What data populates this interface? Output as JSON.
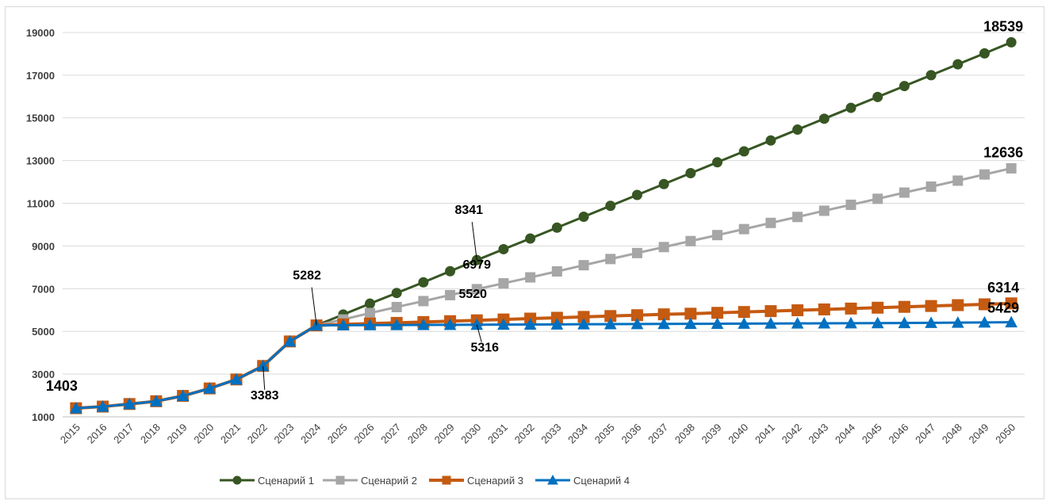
{
  "chart_data": {
    "type": "line",
    "title": "",
    "xlabel": "",
    "ylabel": "",
    "ylim": [
      1000,
      20000
    ],
    "yticks": [
      1000,
      3000,
      5000,
      7000,
      9000,
      11000,
      13000,
      15000,
      17000,
      19000
    ],
    "grid": true,
    "legend_position": "bottom",
    "x": [
      "2015",
      "2016",
      "2017",
      "2018",
      "2019",
      "2020",
      "2021",
      "2022",
      "2023",
      "2024",
      "2025",
      "2026",
      "2027",
      "2028",
      "2029",
      "2030",
      "2031",
      "2032",
      "2033",
      "2034",
      "2035",
      "2036",
      "2037",
      "2038",
      "2039",
      "2040",
      "2041",
      "2042",
      "2043",
      "2044",
      "2045",
      "2046",
      "2047",
      "2048",
      "2049",
      "2050"
    ],
    "series": [
      {
        "name": "Сценарий 1",
        "color": "#375623",
        "marker": "circle",
        "values": [
          1403,
          1480,
          1600,
          1730,
          1980,
          2330,
          2750,
          3383,
          4530,
          5282,
          5790,
          6300,
          6800,
          7300,
          7820,
          8341,
          8850,
          9350,
          9860,
          10370,
          10880,
          11390,
          11900,
          12410,
          12920,
          13430,
          13940,
          14450,
          14960,
          15470,
          15980,
          16490,
          17000,
          17510,
          18020,
          18539
        ]
      },
      {
        "name": "Сценарий 2",
        "color": "#a6a6a6",
        "marker": "square",
        "values": [
          1403,
          1480,
          1600,
          1730,
          1980,
          2330,
          2750,
          3383,
          4530,
          5282,
          5560,
          5860,
          6140,
          6420,
          6700,
          6979,
          7250,
          7530,
          7810,
          8100,
          8390,
          8670,
          8950,
          9230,
          9510,
          9790,
          10080,
          10360,
          10650,
          10930,
          11210,
          11500,
          11780,
          12060,
          12350,
          12636
        ]
      },
      {
        "name": "Сценарий 3",
        "color": "#c55a11",
        "marker": "square",
        "values": [
          1403,
          1480,
          1600,
          1730,
          1980,
          2330,
          2750,
          3383,
          4530,
          5282,
          5330,
          5370,
          5400,
          5440,
          5480,
          5520,
          5560,
          5600,
          5640,
          5680,
          5720,
          5760,
          5800,
          5830,
          5870,
          5910,
          5950,
          5990,
          6030,
          6070,
          6110,
          6150,
          6190,
          6230,
          6270,
          6314
        ]
      },
      {
        "name": "Сценарий 4",
        "color": "#0070c0",
        "marker": "triangle",
        "values": [
          1403,
          1480,
          1600,
          1730,
          1980,
          2330,
          2750,
          3383,
          4530,
          5282,
          5290,
          5295,
          5300,
          5305,
          5310,
          5316,
          5320,
          5325,
          5330,
          5335,
          5340,
          5345,
          5350,
          5355,
          5360,
          5365,
          5370,
          5375,
          5380,
          5385,
          5390,
          5395,
          5400,
          5410,
          5420,
          5429
        ]
      }
    ],
    "annotations": [
      {
        "text": "1403",
        "x": "2015",
        "value": 1403
      },
      {
        "text": "3383",
        "x": "2022",
        "value": 3383
      },
      {
        "text": "5282",
        "x": "2024",
        "value": 5282
      },
      {
        "text": "8341",
        "x": "2030",
        "value": 8341
      },
      {
        "text": "6979",
        "x": "2030",
        "value": 6979
      },
      {
        "text": "5520",
        "x": "2030",
        "value": 5520
      },
      {
        "text": "5316",
        "x": "2030",
        "value": 5316
      },
      {
        "text": "18539",
        "x": "2050",
        "value": 18539
      },
      {
        "text": "12636",
        "x": "2050",
        "value": 12636
      },
      {
        "text": "6314",
        "x": "2050",
        "value": 6314
      },
      {
        "text": "5429",
        "x": "2050",
        "value": 5429
      }
    ]
  }
}
